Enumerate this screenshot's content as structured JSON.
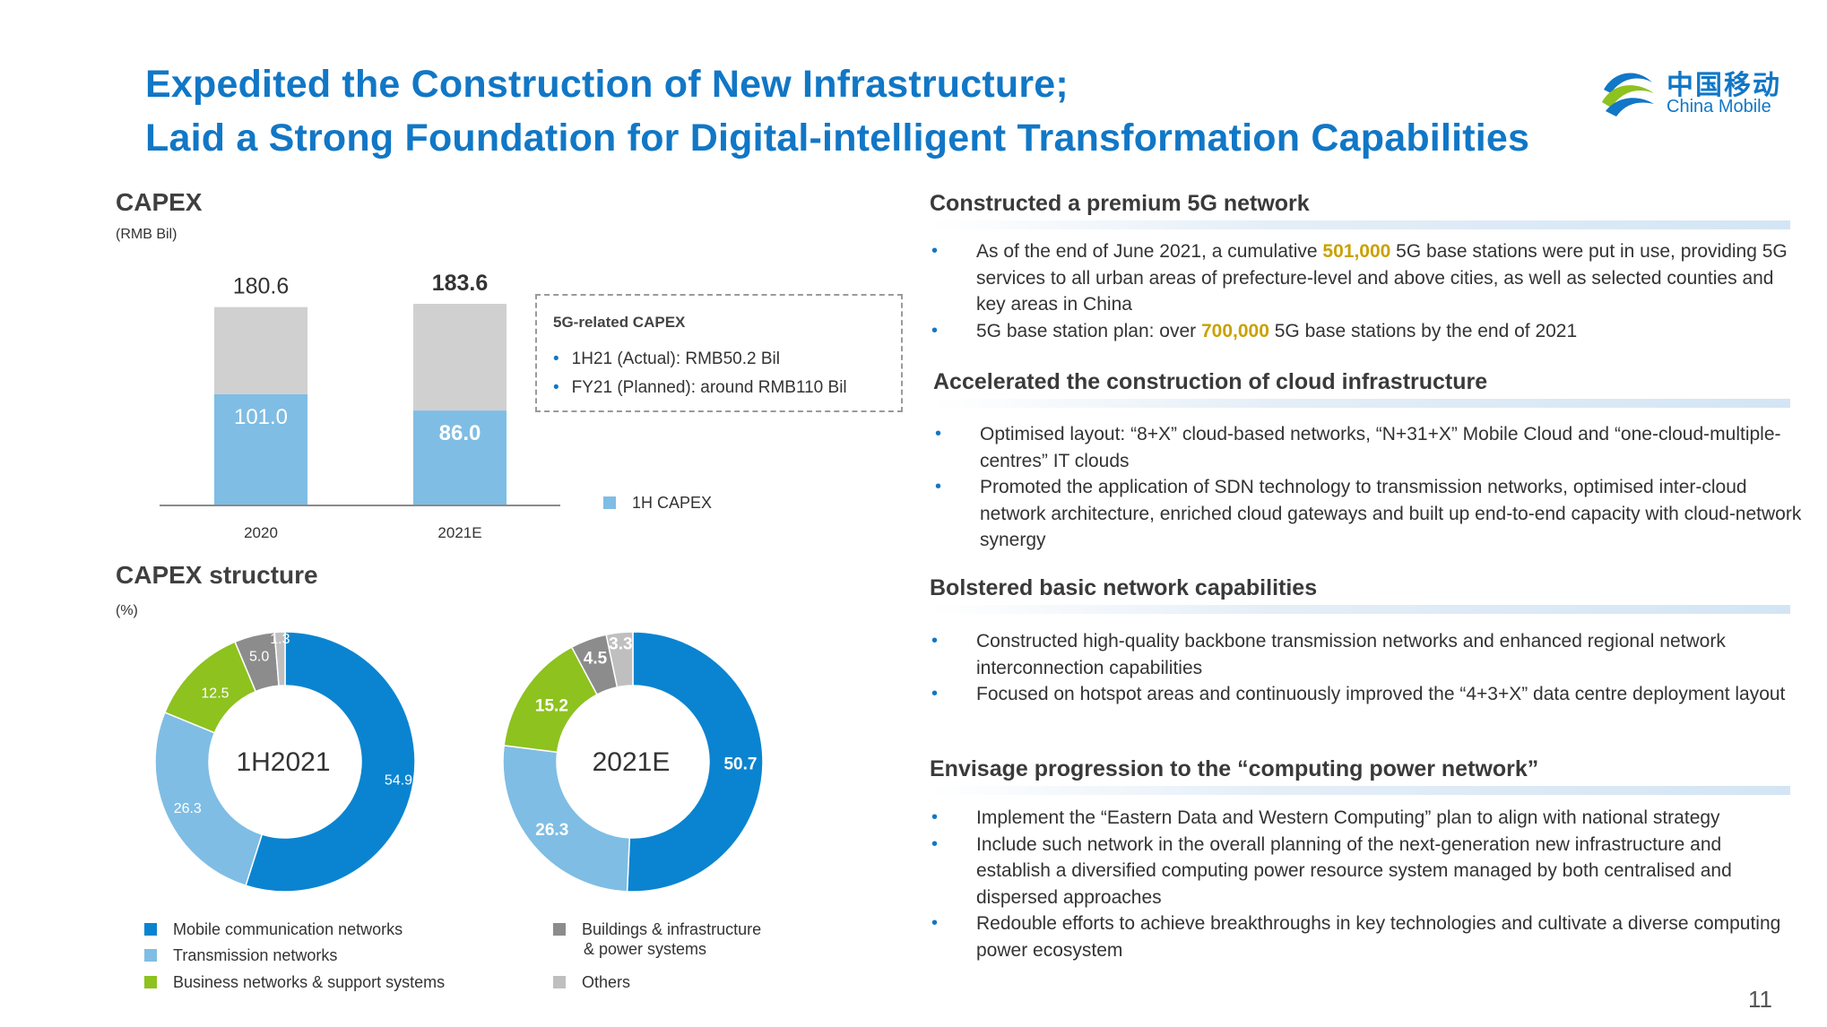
{
  "title": {
    "line1": "Expedited the Construction of New Infrastructure;",
    "line2": "Laid a Strong Foundation for Digital-intelligent Transformation Capabilities"
  },
  "logo": {
    "cn": "中国移动",
    "en": "China Mobile",
    "icon": "china-mobile-logo-icon"
  },
  "capex": {
    "heading": "CAPEX",
    "unit": "(RMB Bil)",
    "legend_label": "1H CAPEX",
    "callout": {
      "title": "5G-related CAPEX",
      "items": [
        "1H21 (Actual): RMB50.2 Bil",
        "FY21 (Planned):  around RMB110 Bil"
      ]
    }
  },
  "structure": {
    "heading": "CAPEX structure",
    "unit": "(%)",
    "legend": [
      "Mobile communication networks",
      "Transmission networks",
      "Business networks & support systems",
      "Buildings & infrastructure",
      "& power systems",
      "Others"
    ]
  },
  "chart_data": [
    {
      "type": "bar",
      "categories": [
        "2020",
        "2021E"
      ],
      "series": [
        {
          "name": "1H CAPEX",
          "values": [
            101.0,
            86.0
          ]
        },
        {
          "values": [
            79.6,
            97.6
          ]
        }
      ],
      "totals": [
        180.6,
        183.6
      ],
      "value_labels": [
        "101.0",
        "86.0"
      ],
      "total_labels": [
        "180.6",
        "183.6"
      ],
      "ylim": [
        0,
        200
      ],
      "colors": [
        "#7FBDE4",
        "#D0D0D0"
      ],
      "legend_position": "right"
    },
    {
      "type": "pie",
      "center_label": "1H2021",
      "categories": [
        "Mobile communication networks",
        "Transmission networks",
        "Business networks & support systems",
        "Buildings & infrastructure & power systems",
        "Others"
      ],
      "values": [
        54.9,
        26.3,
        12.5,
        5.0,
        1.3
      ],
      "labels": [
        "54.9",
        "26.3",
        "12.5",
        "5.0",
        "1.3"
      ],
      "colors": [
        "#0A84D0",
        "#7FBDE4",
        "#8DC21F",
        "#8C8C8C",
        "#BFBFBF"
      ]
    },
    {
      "type": "pie",
      "center_label": "2021E",
      "categories": [
        "Mobile communication networks",
        "Transmission networks",
        "Business networks & support systems",
        "Buildings & infrastructure & power systems",
        "Others"
      ],
      "values": [
        50.7,
        26.3,
        15.2,
        4.5,
        3.3
      ],
      "labels": [
        "50.7",
        "26.3",
        "15.2",
        "4.5",
        "3.3"
      ],
      "colors": [
        "#0A84D0",
        "#7FBDE4",
        "#8DC21F",
        "#8C8C8C",
        "#BFBFBF"
      ]
    }
  ],
  "right": {
    "s1": {
      "head": "Constructed a premium 5G network",
      "b1": {
        "pre": "As of the end of June 2021, a cumulative ",
        "hl": "501,000",
        "post": " 5G base stations were put in use, providing 5G services to all urban areas of prefecture-level and above cities, as well as selected counties and key areas in China"
      },
      "b2": {
        "pre": "5G base station plan: over ",
        "hl": "700,000",
        "post": " 5G base stations by the end of 2021"
      }
    },
    "s2": {
      "head": "Accelerated the construction of cloud infrastructure",
      "items": [
        "Optimised layout: “8+X” cloud-based networks, “N+31+X” Mobile Cloud and “one-cloud-multiple-centres”  IT clouds",
        "Promoted the application of SDN technology to transmission networks, optimised inter-cloud network architecture, enriched cloud gateways and built up end-to-end capacity with cloud-network synergy"
      ]
    },
    "s3": {
      "head": "Bolstered basic network capabilities",
      "items": [
        "Constructed high-quality backbone transmission networks and enhanced regional network interconnection capabilities",
        "Focused on hotspot areas and continuously improved the “4+3+X” data centre deployment layout"
      ]
    },
    "s4": {
      "head": "Envisage progression to the “computing power network”",
      "items": [
        "Implement the “Eastern Data and Western Computing” plan to align with national strategy",
        "Include such network in the overall planning of the next-generation new infrastructure and establish a diversified computing power resource system managed by both centralised and dispersed approaches",
        "Redouble efforts to achieve breakthroughs in key technologies and cultivate a diverse computing power ecosystem"
      ]
    }
  },
  "page_number": "11"
}
